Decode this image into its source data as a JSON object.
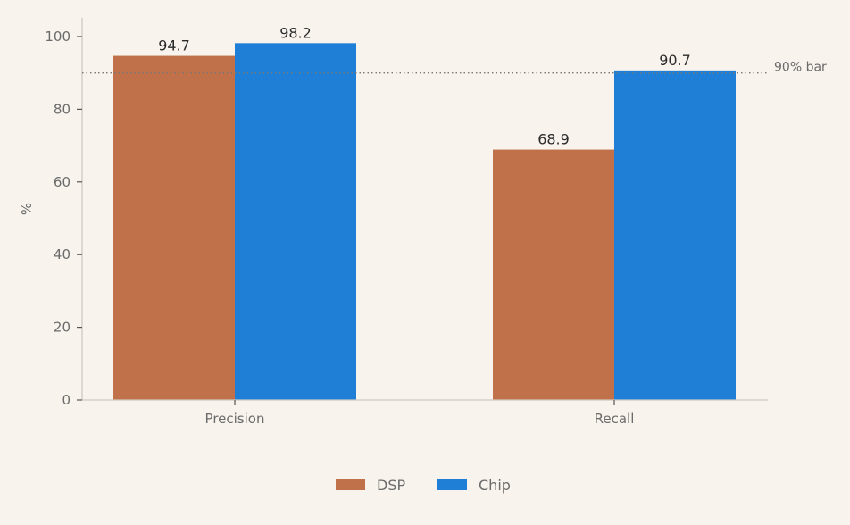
{
  "chart_data": {
    "type": "bar",
    "categories": [
      "Precision",
      "Recall"
    ],
    "series": [
      {
        "name": "DSP",
        "values": [
          94.7,
          68.9
        ],
        "color": "#c0714a"
      },
      {
        "name": "Chip",
        "values": [
          98.2,
          90.7
        ],
        "color": "#1f7fd6"
      }
    ],
    "ylabel": "%",
    "xlabel": "",
    "ylim": [
      0,
      105
    ],
    "yticks": [
      0,
      20,
      40,
      60,
      80,
      100
    ],
    "reference_line": {
      "value": 90,
      "label": "90% bar",
      "style": "dotted",
      "color": "#777777"
    },
    "grid": false,
    "legend_position": "bottom-center"
  }
}
